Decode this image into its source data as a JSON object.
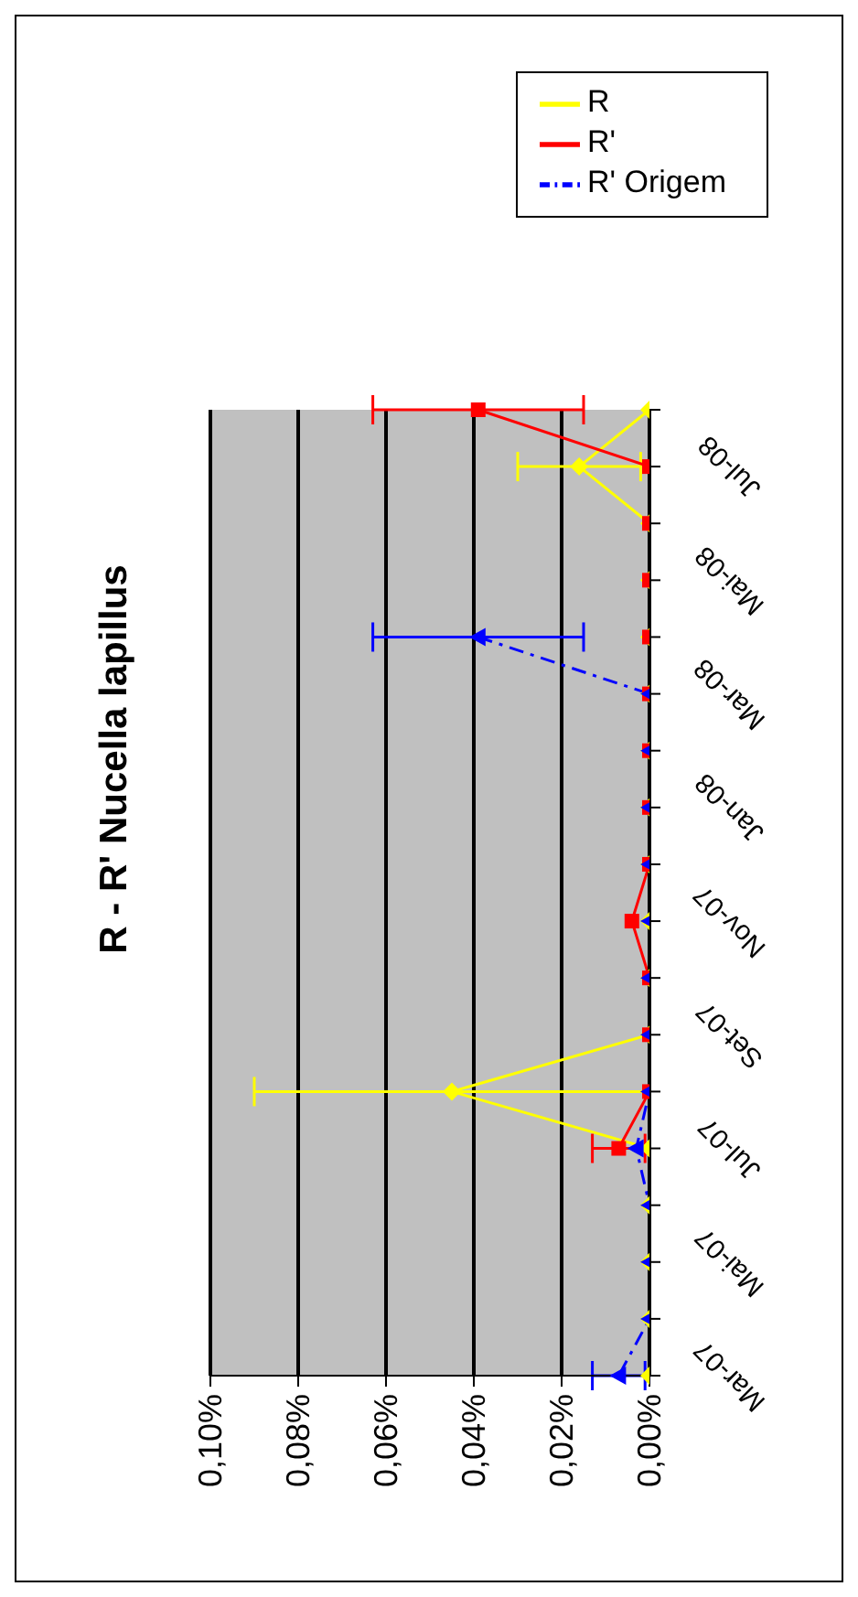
{
  "chart_data": {
    "type": "line",
    "title": "R - R' Nucella lapillus",
    "orientation": "horizontal",
    "categories": [
      null,
      "Jul-08",
      null,
      "Mai-08",
      null,
      "Mar-08",
      null,
      "Jan-08",
      null,
      "Nov-07",
      null,
      "Set-07",
      null,
      "Jul-07",
      null,
      "Mai-07",
      null,
      "Mar-07"
    ],
    "series": [
      {
        "name": "R",
        "color": "#ffff00",
        "marker": "diamond",
        "line_style": "solid",
        "values": [
          0,
          0.016,
          0,
          0,
          0,
          0,
          0,
          0,
          0,
          0,
          0,
          0,
          0.045,
          0,
          0,
          0,
          0,
          0
        ],
        "errors": [
          null,
          0.014,
          null,
          null,
          null,
          null,
          null,
          null,
          null,
          null,
          null,
          null,
          0.045,
          null,
          null,
          null,
          null,
          null
        ]
      },
      {
        "name": "R'",
        "color": "#ff0000",
        "marker": "square",
        "line_style": "solid",
        "values": [
          0.039,
          0,
          0,
          0,
          0,
          0,
          0,
          0,
          0,
          0.004,
          0,
          0,
          0,
          0.007,
          null,
          null,
          null,
          null
        ],
        "errors": [
          0.024,
          null,
          null,
          null,
          null,
          null,
          null,
          null,
          null,
          null,
          null,
          null,
          null,
          0.006,
          null,
          null,
          null,
          null
        ]
      },
      {
        "name": "R' Origem",
        "color": "#0000ff",
        "marker": "triangle",
        "line_style": "dashed",
        "values": [
          null,
          null,
          null,
          null,
          0.039,
          0,
          0,
          0,
          0,
          0,
          0,
          0,
          0,
          0.003,
          0,
          0,
          0,
          0.007
        ],
        "errors": [
          null,
          null,
          null,
          null,
          0.024,
          null,
          null,
          null,
          null,
          null,
          null,
          null,
          null,
          null,
          null,
          null,
          null,
          0.006
        ]
      }
    ],
    "xlim": [
      0.1,
      0
    ],
    "xticks": [
      {
        "value": 0.1,
        "label": "0,10%"
      },
      {
        "value": 0.08,
        "label": "0,08%"
      },
      {
        "value": 0.06,
        "label": "0,06%"
      },
      {
        "value": 0.04,
        "label": "0,04%"
      },
      {
        "value": 0.02,
        "label": "0,02%"
      },
      {
        "value": 0,
        "label": "0,00%"
      }
    ],
    "grid": "x",
    "legend": "top right"
  }
}
